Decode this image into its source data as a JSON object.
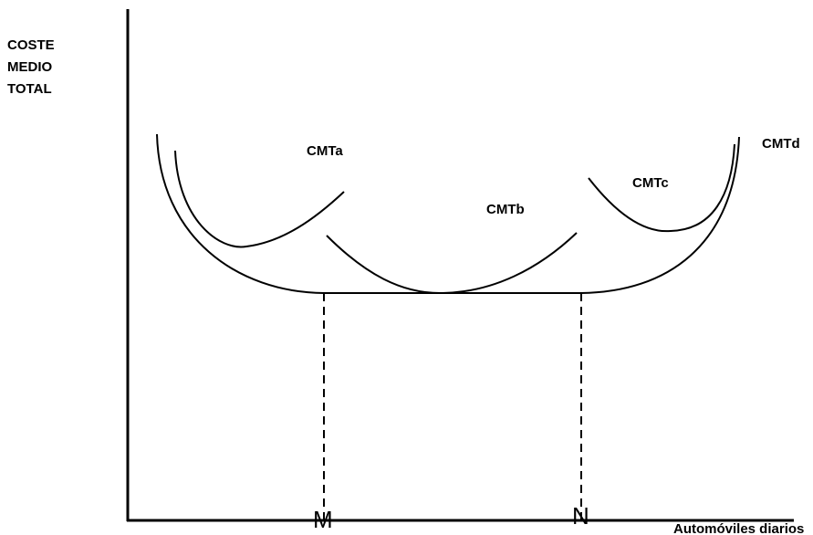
{
  "y_axis": {
    "label_lines": [
      "COSTE",
      "MEDIO",
      "TOTAL"
    ]
  },
  "x_axis": {
    "label": "Automóviles diarios",
    "points": [
      "M",
      "N"
    ]
  },
  "curves": [
    {
      "label": "CMTa"
    },
    {
      "label": "CMTb"
    },
    {
      "label": "CMTc"
    },
    {
      "label": "CMTd"
    }
  ]
}
